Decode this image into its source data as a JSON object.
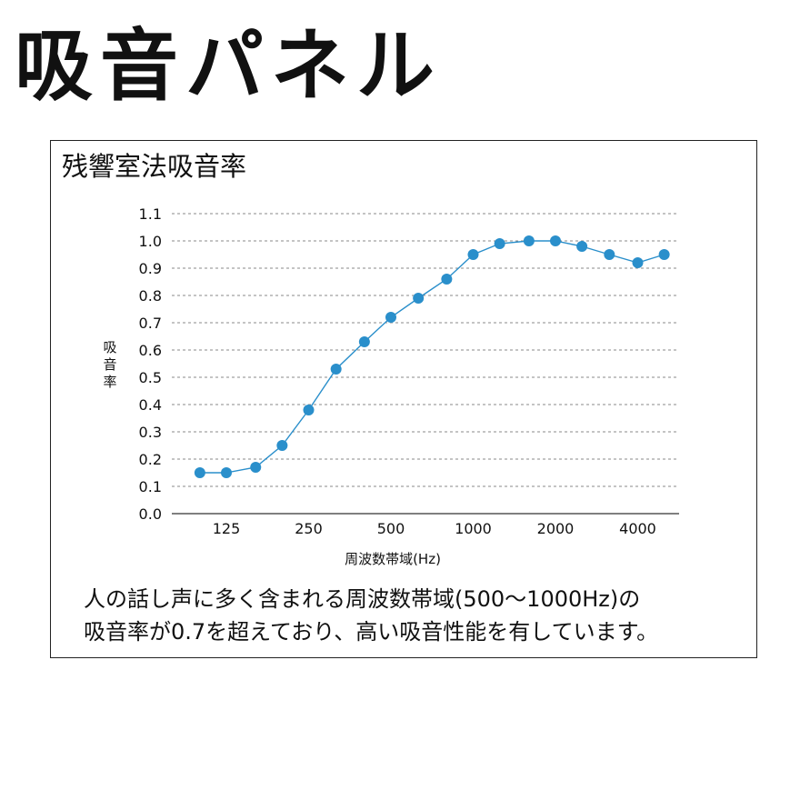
{
  "page": {
    "title": "吸音パネル"
  },
  "panel": {
    "title": "残響室法吸音率",
    "caption_line1": "人の話し声に多く含まれる周波数帯域(500～1000Hz)の",
    "caption_line2": "吸音率が0.7を超えており、高い吸音性能を有しています。"
  },
  "colors": {
    "series": "#2a8fcb",
    "grid": "#888888",
    "text": "#111111"
  },
  "chart_data": {
    "type": "line",
    "title": "",
    "xlabel": "周波数帯域(Hz)",
    "ylabel": "吸音率",
    "x_scale": "log",
    "x_ticks": [
      125,
      250,
      500,
      1000,
      2000,
      4000
    ],
    "x_tick_labels": [
      "125",
      "250",
      "500",
      "1000",
      "2000",
      "4000"
    ],
    "y_ticks": [
      0.0,
      0.1,
      0.2,
      0.3,
      0.4,
      0.5,
      0.6,
      0.7,
      0.8,
      0.9,
      1.0,
      1.1
    ],
    "y_tick_labels": [
      "0.0",
      "0.1",
      "0.2",
      "0.3",
      "0.4",
      "0.5",
      "0.6",
      "0.7",
      "0.8",
      "0.9",
      "1.0",
      "1.1"
    ],
    "ylim": [
      0,
      1.1
    ],
    "grid": "horizontal-dashed",
    "x": [
      100,
      125,
      160,
      200,
      250,
      315,
      400,
      500,
      630,
      800,
      1000,
      1250,
      1600,
      2000,
      2500,
      3150,
      4000,
      5000
    ],
    "series": [
      {
        "values": [
          0.15,
          0.15,
          0.17,
          0.25,
          0.38,
          0.53,
          0.63,
          0.72,
          0.79,
          0.86,
          0.95,
          0.99,
          1.0,
          1.0,
          0.98,
          0.95,
          0.92,
          0.95
        ]
      }
    ]
  }
}
